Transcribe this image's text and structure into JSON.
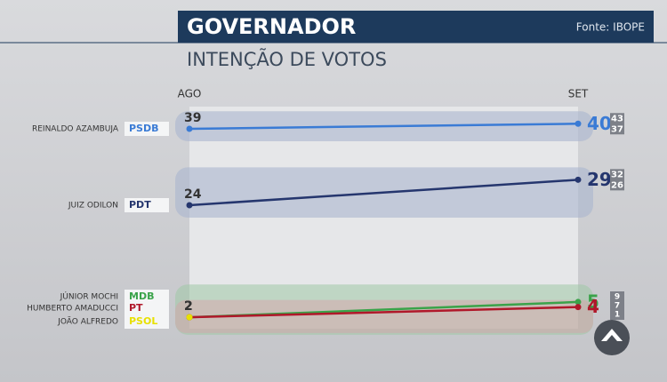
{
  "chart_data": {
    "type": "line",
    "title": "GOVERNADOR",
    "subtitle": "INTENÇÃO DE VOTOS",
    "source": "Fonte: IBOPE",
    "categories": [
      "AGO",
      "SET"
    ],
    "ylim": [
      0,
      45
    ],
    "series": [
      {
        "name": "REINALDO AZAMBUJA",
        "party": "PSDB",
        "color": "#3a7bd5",
        "values": [
          39,
          40
        ],
        "range": [
          43,
          37
        ]
      },
      {
        "name": "JUIZ ODILON",
        "party": "PDT",
        "color": "#25366e",
        "values": [
          24,
          29
        ],
        "range": [
          32,
          26
        ]
      },
      {
        "name": "JÚNIOR MOCHI",
        "party": "MDB",
        "color": "#3aa34a",
        "values": [
          2,
          5
        ]
      },
      {
        "name": "HUMBERTO AMADUCCI",
        "party": "PT",
        "color": "#b0182a",
        "values": [
          2,
          4
        ]
      },
      {
        "name": "JOÃO ALFREDO",
        "party": "PSOL",
        "color": "#e8e000",
        "values": [
          2,
          null
        ]
      }
    ],
    "low_group_range": [
      9,
      7,
      1
    ]
  }
}
